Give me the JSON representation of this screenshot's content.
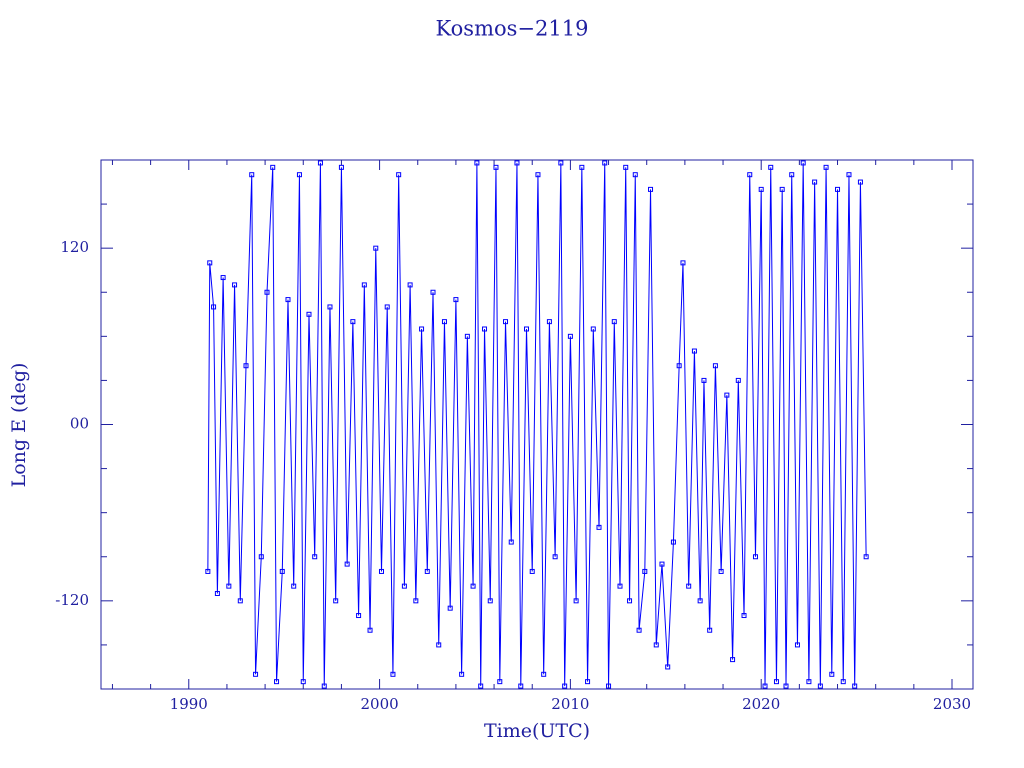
{
  "chart_data": {
    "type": "line",
    "title": "Kosmos−2119",
    "x_label": "Time(UTC)",
    "y_label": "Long E (deg)",
    "color": "#0000ff",
    "xlim": [
      1985.4,
      2031.1
    ],
    "ylim": [
      -180,
      180
    ],
    "xticks": [
      1990,
      2000,
      2010,
      2020,
      2030
    ],
    "xminorticks": [
      1986,
      1988,
      1992,
      1994,
      1996,
      1998,
      2002,
      2004,
      2006,
      2008,
      2012,
      2014,
      2016,
      2018,
      2022,
      2024,
      2026,
      2028
    ],
    "yticks": [
      {
        "value": -120,
        "label": "-120"
      },
      {
        "value": 0,
        "label": "00"
      },
      {
        "value": 120,
        "label": "120"
      }
    ],
    "yminorticks": [
      -150,
      -90,
      -60,
      -30,
      30,
      60,
      90,
      150
    ],
    "x": [
      1991.0,
      1991.1,
      1991.3,
      1991.5,
      1991.8,
      1992.1,
      1992.4,
      1992.7,
      1993.0,
      1993.3,
      1993.5,
      1993.8,
      1994.1,
      1994.4,
      1994.6,
      1994.9,
      1995.2,
      1995.5,
      1995.8,
      1996.0,
      1996.3,
      1996.6,
      1996.9,
      1997.1,
      1997.4,
      1997.7,
      1998.0,
      1998.3,
      1998.6,
      1998.9,
      1999.2,
      1999.5,
      1999.8,
      2000.1,
      2000.4,
      2000.7,
      2001.0,
      2001.3,
      2001.6,
      2001.9,
      2002.2,
      2002.5,
      2002.8,
      2003.1,
      2003.4,
      2003.7,
      2004.0,
      2004.3,
      2004.6,
      2004.9,
      2005.1,
      2005.3,
      2005.5,
      2005.8,
      2006.1,
      2006.3,
      2006.6,
      2006.9,
      2007.2,
      2007.4,
      2007.7,
      2008.0,
      2008.3,
      2008.6,
      2008.9,
      2009.2,
      2009.5,
      2009.7,
      2010.0,
      2010.3,
      2010.6,
      2010.9,
      2011.2,
      2011.5,
      2011.8,
      2012.0,
      2012.3,
      2012.6,
      2012.9,
      2013.1,
      2013.4,
      2013.6,
      2013.9,
      2014.2,
      2014.5,
      2014.8,
      2015.1,
      2015.4,
      2015.7,
      2015.9,
      2016.2,
      2016.5,
      2016.8,
      2017.0,
      2017.3,
      2017.6,
      2017.9,
      2018.2,
      2018.5,
      2018.8,
      2019.1,
      2019.4,
      2019.7,
      2020.0,
      2020.2,
      2020.5,
      2020.8,
      2021.1,
      2021.3,
      2021.6,
      2021.9,
      2022.2,
      2022.5,
      2022.8,
      2023.1,
      2023.4,
      2023.7,
      2024.0,
      2024.3,
      2024.6,
      2024.9,
      2025.2,
      2025.5
    ],
    "values": [
      -100,
      110,
      80,
      -115,
      100,
      -110,
      95,
      -120,
      40,
      170,
      -170,
      -90,
      90,
      175,
      -175,
      -100,
      85,
      -110,
      170,
      -175,
      75,
      -90,
      178,
      -178,
      80,
      -120,
      175,
      -95,
      70,
      -130,
      95,
      -140,
      120,
      -100,
      80,
      -170,
      170,
      -110,
      95,
      -120,
      65,
      -100,
      90,
      -150,
      70,
      -125,
      85,
      -170,
      60,
      -110,
      178,
      -178,
      65,
      -120,
      175,
      -175,
      70,
      -80,
      178,
      -178,
      65,
      -100,
      170,
      -170,
      70,
      -90,
      178,
      -178,
      60,
      -120,
      175,
      -175,
      65,
      -70,
      178,
      -178,
      70,
      -110,
      175,
      -120,
      170,
      -140,
      -100,
      160,
      -150,
      -95,
      -165,
      -80,
      40,
      110,
      -110,
      50,
      -120,
      30,
      -140,
      40,
      -100,
      20,
      -160,
      30,
      -130,
      170,
      -90,
      160,
      -178,
      175,
      -175,
      160,
      -178,
      170,
      -150,
      178,
      -175,
      165,
      -178,
      175,
      -170,
      160,
      -175,
      170,
      -178,
      165,
      -90
    ]
  }
}
